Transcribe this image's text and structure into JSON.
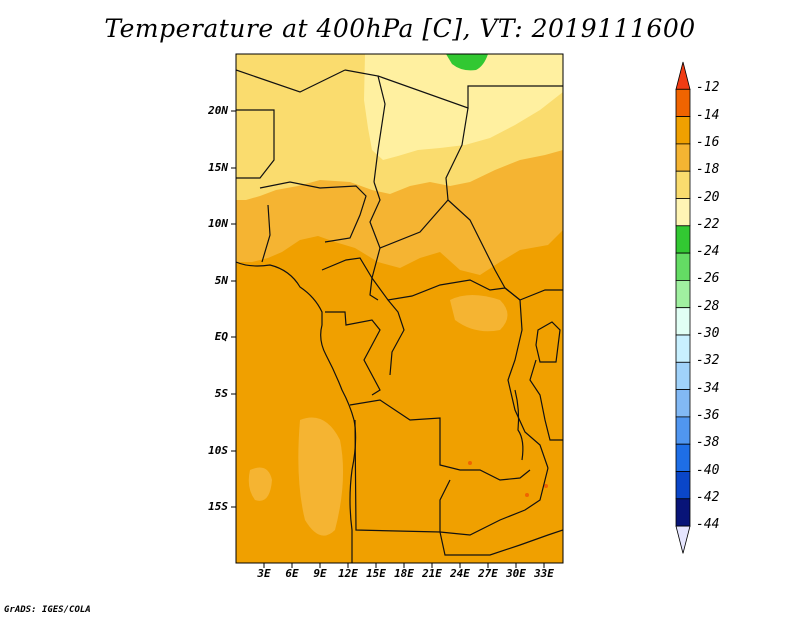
{
  "title": "Temperature at 400hPa [C], VT: 2019111600",
  "credit": "GrADS: IGES/COLA",
  "map": {
    "variable": "Temperature",
    "level": "400hPa",
    "units": "C",
    "valid_time": "2019111600",
    "lat_labels": [
      "20N",
      "15N",
      "10N",
      "5N",
      "EQ",
      "5S",
      "10S",
      "15S"
    ],
    "lon_labels": [
      "3E",
      "6E",
      "9E",
      "12E",
      "15E",
      "18E",
      "21E",
      "24E",
      "27E",
      "30E",
      "33E"
    ]
  },
  "colorbar": {
    "labels": [
      "-12",
      "-14",
      "-16",
      "-18",
      "-20",
      "-22",
      "-24",
      "-26",
      "-28",
      "-30",
      "-32",
      "-34",
      "-36",
      "-38",
      "-40",
      "-42",
      "-44"
    ],
    "colors_top_to_bottom": [
      "#f03c14",
      "#f06400",
      "#f0a000",
      "#f5b432",
      "#fadc6e",
      "#fff5b4",
      "#32c832",
      "#64dc64",
      "#a0f0a0",
      "#e1fff5",
      "#c8f0ff",
      "#a0d2fa",
      "#82b9f5",
      "#5096f0",
      "#1e6ee6",
      "#0a46c8",
      "#081478",
      "#e6e6ff"
    ]
  }
}
